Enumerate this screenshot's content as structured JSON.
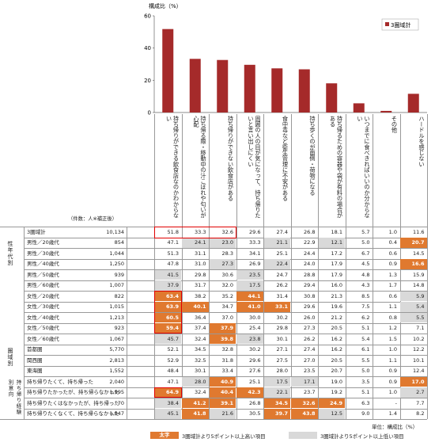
{
  "chart_data": {
    "type": "bar",
    "ylabel": "構成比（%）",
    "yticks": [
      0,
      20,
      40,
      60
    ],
    "ylim": [
      0,
      60
    ],
    "legend_label": "3圏域計",
    "legend_position": "top-right",
    "bar_color": "#a52a2a",
    "categories": [
      "持ち帰りができる飲食店なのかわからない",
      "持ち帰る際・移動中の汁こぼれや匂いが心配",
      "持ち帰りができない飲食店がある",
      "周囲の人の目が気になって、持ち帰りたいと言い出しにくい",
      "食中毒など衛生管理に不安がある",
      "持ち歩くのが面倒・荷物になる",
      "持ち帰るための容器や袋が有料の場合がある",
      "いつまでに食べきればいいのか分からない",
      "その他",
      "ハードルを感じない"
    ],
    "values": [
      51.8,
      33.3,
      32.6,
      29.6,
      27.4,
      26.8,
      18.1,
      5.7,
      1.0,
      11.6
    ]
  },
  "table": {
    "count_header": "（件数：人※補正後）",
    "groups": [
      "性年代別",
      "圏域別",
      "持ち帰り経験別意向"
    ],
    "rows": [
      {
        "label": "3圏域計",
        "n": "10,134",
        "v": [
          "51.8",
          "33.3",
          "32.6",
          "29.6",
          "27.4",
          "26.8",
          "18.1",
          "5.7",
          "1.0",
          "11.6"
        ]
      },
      {
        "label": "男性／20歳代",
        "n": "854",
        "v": [
          "47.1",
          "24.1",
          "23.0",
          "33.3",
          "21.1",
          "22.9",
          "12.1",
          "5.0",
          "0.4",
          "20.7"
        ]
      },
      {
        "label": "男性／30歳代",
        "n": "1,044",
        "v": [
          "51.3",
          "31.1",
          "28.3",
          "34.1",
          "25.1",
          "24.4",
          "17.2",
          "6.7",
          "0.6",
          "14.5"
        ]
      },
      {
        "label": "男性／40歳代",
        "n": "1,250",
        "v": [
          "47.8",
          "31.0",
          "27.3",
          "26.9",
          "22.4",
          "24.0",
          "17.9",
          "4.5",
          "0.9",
          "16.6"
        ]
      },
      {
        "label": "男性／50歳代",
        "n": "939",
        "v": [
          "41.5",
          "29.8",
          "30.6",
          "23.5",
          "24.7",
          "28.8",
          "17.9",
          "4.8",
          "1.3",
          "15.9"
        ]
      },
      {
        "label": "男性／60歳代",
        "n": "1,007",
        "v": [
          "37.9",
          "31.7",
          "32.0",
          "17.5",
          "26.2",
          "29.4",
          "16.0",
          "4.3",
          "1.7",
          "14.8"
        ]
      },
      {
        "label": "女性／20歳代",
        "n": "822",
        "v": [
          "63.4",
          "38.2",
          "35.2",
          "44.1",
          "31.4",
          "30.8",
          "21.3",
          "8.5",
          "0.6",
          "5.9"
        ]
      },
      {
        "label": "女性／30歳代",
        "n": "1,015",
        "v": [
          "63.9",
          "40.1",
          "34.7",
          "41.0",
          "33.1",
          "29.6",
          "19.6",
          "7.5",
          "1.1",
          "5.4"
        ]
      },
      {
        "label": "女性／40歳代",
        "n": "1,213",
        "v": [
          "60.5",
          "36.4",
          "37.0",
          "30.0",
          "30.2",
          "26.0",
          "21.2",
          "6.2",
          "0.8",
          "5.5"
        ]
      },
      {
        "label": "女性／50歳代",
        "n": "923",
        "v": [
          "59.4",
          "37.4",
          "37.9",
          "25.4",
          "29.8",
          "27.3",
          "20.5",
          "5.1",
          "1.2",
          "7.1"
        ]
      },
      {
        "label": "女性／60歳代",
        "n": "1,067",
        "v": [
          "45.7",
          "32.4",
          "39.8",
          "23.8",
          "30.1",
          "26.2",
          "16.2",
          "5.4",
          "1.5",
          "10.2"
        ]
      },
      {
        "label": "首都圏",
        "n": "5,770",
        "v": [
          "52.1",
          "34.5",
          "32.8",
          "30.2",
          "27.1",
          "27.4",
          "16.2",
          "6.1",
          "1.0",
          "12.2"
        ]
      },
      {
        "label": "関西圏",
        "n": "2,813",
        "v": [
          "52.9",
          "32.5",
          "31.8",
          "29.6",
          "27.5",
          "27.0",
          "20.5",
          "5.5",
          "1.1",
          "10.1"
        ]
      },
      {
        "label": "東海圏",
        "n": "1,552",
        "v": [
          "48.4",
          "30.1",
          "33.4",
          "27.6",
          "28.0",
          "23.5",
          "20.7",
          "5.0",
          "0.9",
          "12.4"
        ]
      },
      {
        "label": "持ち帰りたくて、持ち帰った",
        "n": "2,040",
        "v": [
          "47.1",
          "28.0",
          "40.9",
          "25.1",
          "17.5",
          "17.1",
          "19.0",
          "3.5",
          "0.9",
          "17.0"
        ]
      },
      {
        "label": "持ち帰りたかったが、持ち帰らなかった",
        "n": "1,995",
        "v": [
          "64.9",
          "32.4",
          "40.4",
          "42.3",
          "22.1",
          "23.7",
          "19.2",
          "5.1",
          "1.0",
          "2.7"
        ]
      },
      {
        "label": "持ち帰りたくはなかったが、持ち帰った",
        "n": "70",
        "v": [
          "38.4",
          "41.2",
          "39.1",
          "26.8",
          "34.5",
          "32.6",
          "24.9",
          "6.3",
          "-",
          "7.7"
        ]
      },
      {
        "label": "持ち帰りたくなくて、持ち帰らなかった",
        "n": "1,847",
        "v": [
          "45.1",
          "41.8",
          "21.6",
          "30.5",
          "39.7",
          "43.8",
          "12.5",
          "9.0",
          "1.4",
          "8.2"
        ]
      }
    ],
    "unit_note": "単位：構成比（%）",
    "legend_high_swatch": "太字",
    "legend_high": "3圏域計より5ポイント以上高い項目",
    "legend_low": "3圏域計より5ポイント以上低い項目"
  }
}
